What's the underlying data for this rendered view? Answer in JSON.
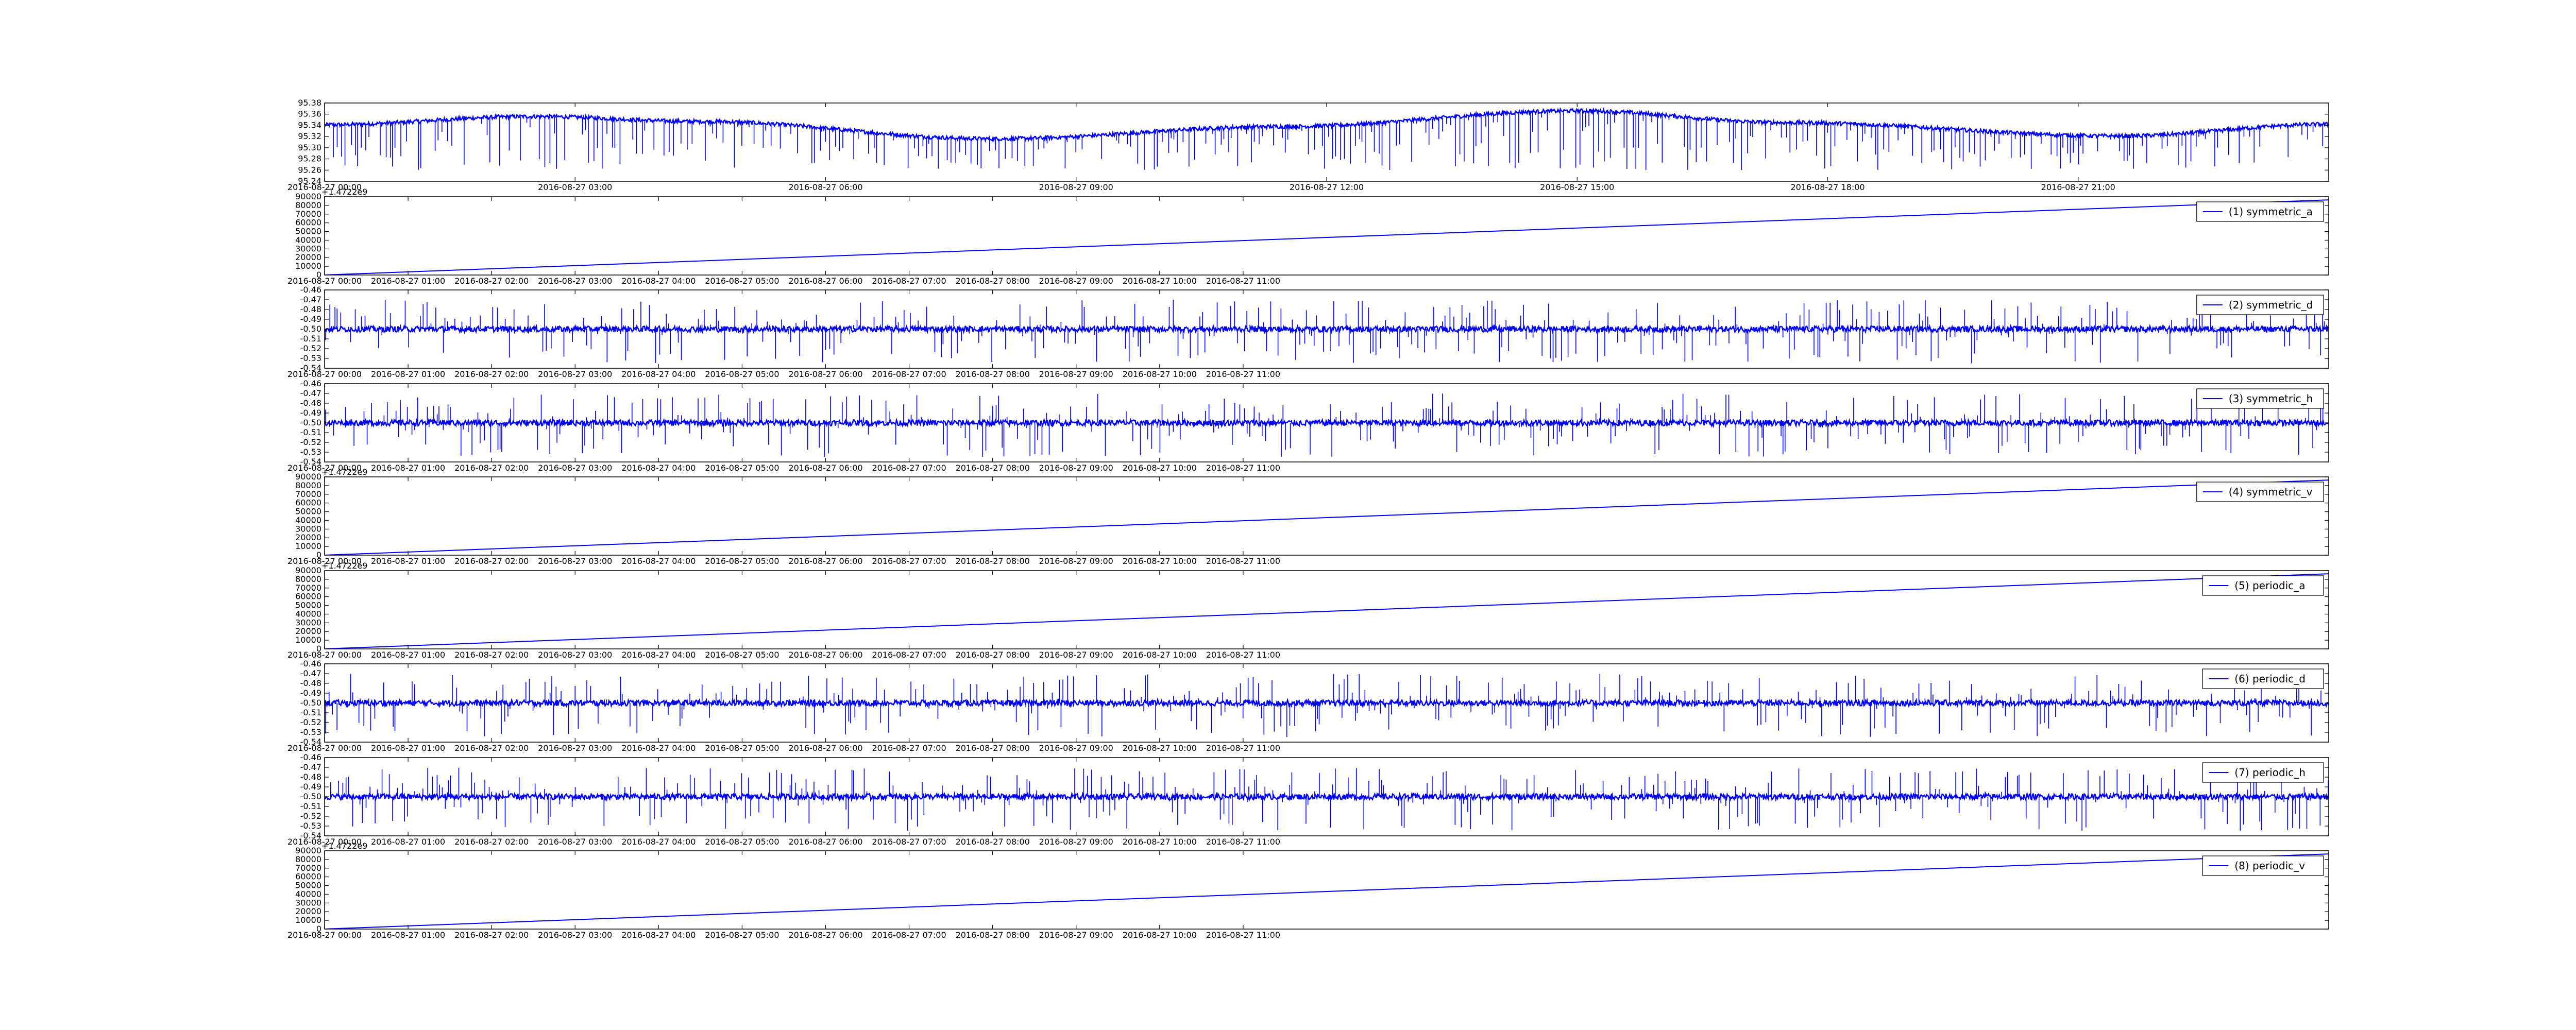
{
  "chart_data": [
    {
      "type": "line",
      "title": "",
      "xlabel": "",
      "ylabel": "",
      "series": [
        {
          "color": "#0000ff"
        }
      ],
      "pattern": "baseline_with_downward_spikes",
      "ylim": [
        95.24,
        95.38
      ],
      "yticks": [
        "95.24",
        "95.26",
        "95.28",
        "95.30",
        "95.32",
        "95.34",
        "95.36",
        "95.38"
      ],
      "xticks": [
        "2016-08-27 00:00",
        "2016-08-27 03:00",
        "2016-08-27 06:00",
        "2016-08-27 09:00",
        "2016-08-27 12:00",
        "2016-08-27 15:00",
        "2016-08-27 18:00",
        "2016-08-27 21:00"
      ],
      "baseline": {
        "x": [
          "2016-08-27 00:00",
          "2016-08-27 02:30",
          "2016-08-27 04:30",
          "2016-08-27 08:00",
          "2016-08-27 11:30",
          "2016-08-27 15:00",
          "2016-08-27 17:30",
          "2016-08-27 21:30",
          "2016-08-28 00:00"
        ],
        "y": [
          95.341,
          95.356,
          95.347,
          95.316,
          95.338,
          95.366,
          95.345,
          95.321,
          95.342
        ]
      },
      "spike_min": 95.26,
      "grid": false,
      "legend": null
    },
    {
      "type": "line",
      "offset_text": "+1.4722e9",
      "ylim": [
        0,
        90000
      ],
      "yticks": [
        "0",
        "10000",
        "20000",
        "30000",
        "40000",
        "50000",
        "60000",
        "70000",
        "80000",
        "90000"
      ],
      "xticks": [
        "2016-08-27 00:00",
        "2016-08-27 01:00",
        "2016-08-27 02:00",
        "2016-08-27 03:00",
        "2016-08-27 04:00",
        "2016-08-27 05:00",
        "2016-08-27 06:00",
        "2016-08-27 07:00",
        "2016-08-27 08:00",
        "2016-08-27 09:00",
        "2016-08-27 10:00",
        "2016-08-27 11:00"
      ],
      "series": [
        {
          "name": "(1) symmetric_a",
          "color": "#0000ff",
          "x": [
            "2016-08-27 00:00",
            "2016-08-28 00:00"
          ],
          "y": [
            0,
            86400
          ]
        }
      ],
      "grid": false,
      "legend": "top-right"
    },
    {
      "type": "line",
      "pattern": "noise_with_spikes",
      "ylim": [
        -0.54,
        -0.46
      ],
      "yticks": [
        "-0.54",
        "-0.53",
        "-0.52",
        "-0.51",
        "-0.50",
        "-0.49",
        "-0.48",
        "-0.47",
        "-0.46"
      ],
      "xticks": [
        "2016-08-27 00:00",
        "2016-08-27 01:00",
        "2016-08-27 02:00",
        "2016-08-27 03:00",
        "2016-08-27 04:00",
        "2016-08-27 05:00",
        "2016-08-27 06:00",
        "2016-08-27 07:00",
        "2016-08-27 08:00",
        "2016-08-27 09:00",
        "2016-08-27 10:00",
        "2016-08-27 11:00"
      ],
      "series": [
        {
          "name": "(2) symmetric_d",
          "color": "#0000ff",
          "baseline": -0.5,
          "spike_high": -0.47,
          "spike_low": -0.535
        }
      ],
      "grid": false,
      "legend": "top-right"
    },
    {
      "type": "line",
      "pattern": "noise_with_spikes",
      "ylim": [
        -0.54,
        -0.46
      ],
      "yticks": [
        "-0.54",
        "-0.53",
        "-0.52",
        "-0.51",
        "-0.50",
        "-0.49",
        "-0.48",
        "-0.47",
        "-0.46"
      ],
      "xticks": [
        "2016-08-27 00:00",
        "2016-08-27 01:00",
        "2016-08-27 02:00",
        "2016-08-27 03:00",
        "2016-08-27 04:00",
        "2016-08-27 05:00",
        "2016-08-27 06:00",
        "2016-08-27 07:00",
        "2016-08-27 08:00",
        "2016-08-27 09:00",
        "2016-08-27 10:00",
        "2016-08-27 11:00"
      ],
      "series": [
        {
          "name": "(3) symmetric_h",
          "color": "#0000ff",
          "baseline": -0.5,
          "spike_high": -0.47,
          "spike_low": -0.535
        }
      ],
      "grid": false,
      "legend": "top-right"
    },
    {
      "type": "line",
      "offset_text": "+1.4722e9",
      "ylim": [
        0,
        90000
      ],
      "yticks": [
        "0",
        "10000",
        "20000",
        "30000",
        "40000",
        "50000",
        "60000",
        "70000",
        "80000",
        "90000"
      ],
      "xticks": [
        "2016-08-27 00:00",
        "2016-08-27 01:00",
        "2016-08-27 02:00",
        "2016-08-27 03:00",
        "2016-08-27 04:00",
        "2016-08-27 05:00",
        "2016-08-27 06:00",
        "2016-08-27 07:00",
        "2016-08-27 08:00",
        "2016-08-27 09:00",
        "2016-08-27 10:00",
        "2016-08-27 11:00"
      ],
      "series": [
        {
          "name": "(4) symmetric_v",
          "color": "#0000ff",
          "x": [
            "2016-08-27 00:00",
            "2016-08-28 00:00"
          ],
          "y": [
            0,
            86400
          ]
        }
      ],
      "grid": false,
      "legend": "top-right"
    },
    {
      "type": "line",
      "offset_text": "+1.4722e9",
      "ylim": [
        0,
        90000
      ],
      "yticks": [
        "0",
        "10000",
        "20000",
        "30000",
        "40000",
        "50000",
        "60000",
        "70000",
        "80000",
        "90000"
      ],
      "xticks": [
        "2016-08-27 00:00",
        "2016-08-27 01:00",
        "2016-08-27 02:00",
        "2016-08-27 03:00",
        "2016-08-27 04:00",
        "2016-08-27 05:00",
        "2016-08-27 06:00",
        "2016-08-27 07:00",
        "2016-08-27 08:00",
        "2016-08-27 09:00",
        "2016-08-27 10:00",
        "2016-08-27 11:00"
      ],
      "series": [
        {
          "name": "(5) periodic_a",
          "color": "#0000ff",
          "x": [
            "2016-08-27 00:00",
            "2016-08-28 00:00"
          ],
          "y": [
            0,
            86400
          ]
        }
      ],
      "grid": false,
      "legend": "top-right"
    },
    {
      "type": "line",
      "pattern": "noise_with_spikes",
      "ylim": [
        -0.54,
        -0.46
      ],
      "yticks": [
        "-0.54",
        "-0.53",
        "-0.52",
        "-0.51",
        "-0.50",
        "-0.49",
        "-0.48",
        "-0.47",
        "-0.46"
      ],
      "xticks": [
        "2016-08-27 00:00",
        "2016-08-27 01:00",
        "2016-08-27 02:00",
        "2016-08-27 03:00",
        "2016-08-27 04:00",
        "2016-08-27 05:00",
        "2016-08-27 06:00",
        "2016-08-27 07:00",
        "2016-08-27 08:00",
        "2016-08-27 09:00",
        "2016-08-27 10:00",
        "2016-08-27 11:00"
      ],
      "series": [
        {
          "name": "(6) periodic_d",
          "color": "#0000ff",
          "baseline": -0.5,
          "spike_high": -0.47,
          "spike_low": -0.535
        }
      ],
      "grid": false,
      "legend": "top-right"
    },
    {
      "type": "line",
      "pattern": "noise_with_spikes",
      "ylim": [
        -0.54,
        -0.46
      ],
      "yticks": [
        "-0.54",
        "-0.53",
        "-0.52",
        "-0.51",
        "-0.50",
        "-0.49",
        "-0.48",
        "-0.47",
        "-0.46"
      ],
      "xticks": [
        "2016-08-27 00:00",
        "2016-08-27 01:00",
        "2016-08-27 02:00",
        "2016-08-27 03:00",
        "2016-08-27 04:00",
        "2016-08-27 05:00",
        "2016-08-27 06:00",
        "2016-08-27 07:00",
        "2016-08-27 08:00",
        "2016-08-27 09:00",
        "2016-08-27 10:00",
        "2016-08-27 11:00"
      ],
      "series": [
        {
          "name": "(7) periodic_h",
          "color": "#0000ff",
          "baseline": -0.5,
          "spike_high": -0.47,
          "spike_low": -0.535
        }
      ],
      "grid": false,
      "legend": "top-right"
    },
    {
      "type": "line",
      "offset_text": "+1.4722e9",
      "ylim": [
        0,
        90000
      ],
      "yticks": [
        "0",
        "10000",
        "20000",
        "30000",
        "40000",
        "50000",
        "60000",
        "70000",
        "80000",
        "90000"
      ],
      "xticks": [
        "2016-08-27 00:00",
        "2016-08-27 01:00",
        "2016-08-27 02:00",
        "2016-08-27 03:00",
        "2016-08-27 04:00",
        "2016-08-27 05:00",
        "2016-08-27 06:00",
        "2016-08-27 07:00",
        "2016-08-27 08:00",
        "2016-08-27 09:00",
        "2016-08-27 10:00",
        "2016-08-27 11:00"
      ],
      "series": [
        {
          "name": "(8) periodic_v",
          "color": "#0000ff",
          "x": [
            "2016-08-27 00:00",
            "2016-08-28 00:00"
          ],
          "y": [
            0,
            86400
          ]
        }
      ],
      "grid": false,
      "legend": "top-right"
    }
  ]
}
